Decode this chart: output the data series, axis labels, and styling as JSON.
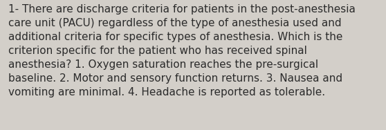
{
  "lines": [
    "1- There are discharge criteria for patients in the post-anesthesia",
    "care unit (PACU) regardless of the type of anesthesia used and",
    "additional criteria for specific types of anesthesia. Which is the",
    "criterion specific for the patient who has received spinal",
    "anesthesia? 1. Oxygen saturation reaches the pre-surgical",
    "baseline. 2. Motor and sensory function returns. 3. Nausea and",
    "vomiting are minimal. 4. Headache is reported as tolerable."
  ],
  "background_color": "#d3cfc9",
  "text_color": "#2b2b2b",
  "font_size": 11.0,
  "fig_width": 5.58,
  "fig_height": 1.88
}
